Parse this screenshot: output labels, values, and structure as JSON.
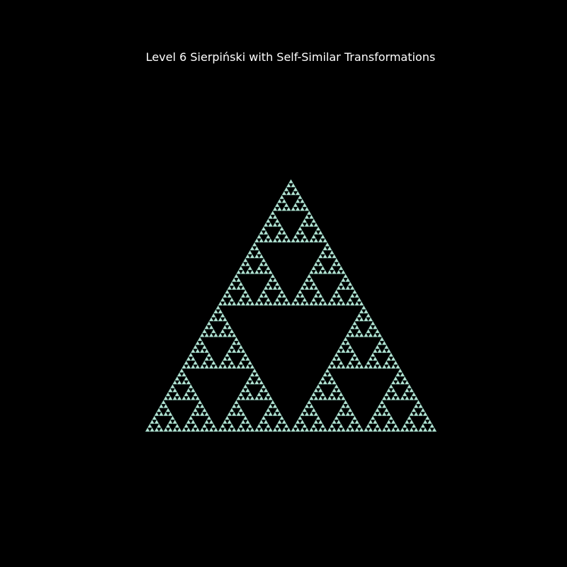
{
  "figure": {
    "title": "Level 6 Sierpiński with Self-Similar Transformations",
    "background_color": "#000000",
    "fill_color": "#b4e4d4",
    "edge_color": "#3f6b60",
    "recursion_level": 6
  }
}
